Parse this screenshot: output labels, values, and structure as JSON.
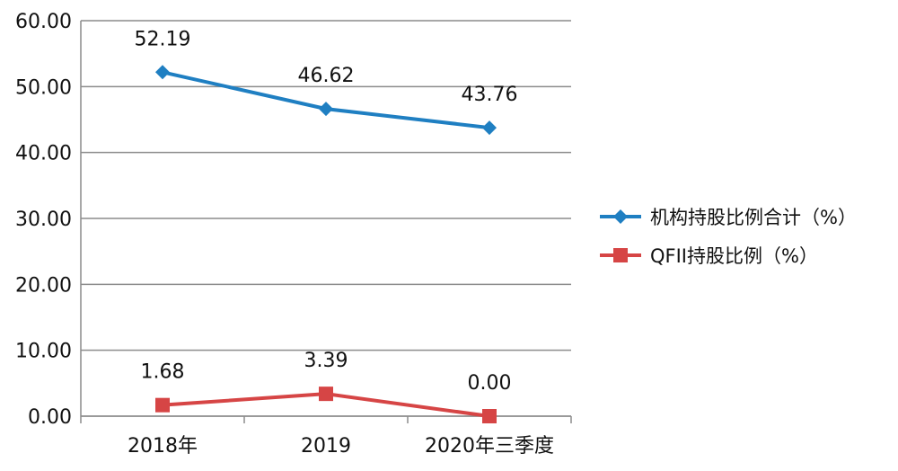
{
  "chart_data": {
    "type": "line",
    "categories": [
      "2018年",
      "2019",
      "2020年三季度"
    ],
    "series": [
      {
        "name": "机构持股比例合计（%）",
        "values": [
          52.19,
          46.62,
          43.76
        ],
        "color": "#1f7fc2",
        "marker": "diamond"
      },
      {
        "name": "QFII持股比例（%）",
        "values": [
          1.68,
          3.39,
          0.0
        ],
        "color": "#d64545",
        "marker": "square"
      }
    ],
    "data_labels": [
      [
        "52.19",
        "46.62",
        "43.76"
      ],
      [
        "1.68",
        "3.39",
        "0.00"
      ]
    ],
    "y_ticks": [
      "0.00",
      "10.00",
      "20.00",
      "30.00",
      "40.00",
      "50.00",
      "60.00"
    ],
    "ylim": [
      0,
      60
    ],
    "grid": true,
    "legend_position": "right",
    "title": "",
    "xlabel": "",
    "ylabel": ""
  }
}
